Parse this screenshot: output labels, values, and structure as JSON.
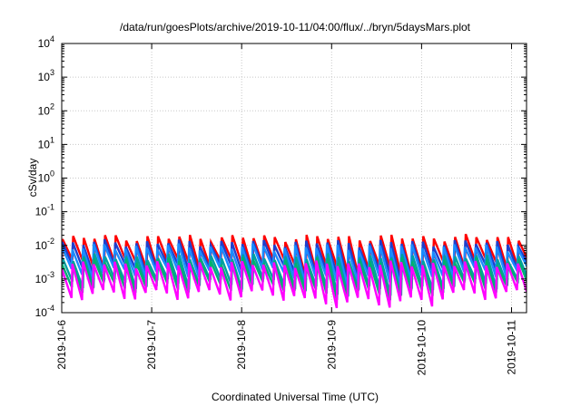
{
  "chart_data": {
    "type": "line",
    "title": "/data/run/goesPlots/archive/2019-10-11/04:00/flux/../bryn/5daysMars.plot",
    "xlabel": "Coordinated Universal Time (UTC)",
    "ylabel": "cSv/day",
    "y_scale": "log",
    "ylim": [
      0.0001,
      10000
    ],
    "xlim": [
      "2019-10-06T00:00",
      "2019-10-11T04:00"
    ],
    "grid": true,
    "x_ticks": [
      "2019-10-6",
      "2019-10-7",
      "2019-10-8",
      "2019-10-9",
      "2019-10-10",
      "2019-10-11"
    ],
    "y_ticks": [
      {
        "base": "10",
        "exp": "-4"
      },
      {
        "base": "10",
        "exp": "-3"
      },
      {
        "base": "10",
        "exp": "-2"
      },
      {
        "base": "10",
        "exp": "-1"
      },
      {
        "base": "10",
        "exp": "0"
      },
      {
        "base": "10",
        "exp": "1"
      },
      {
        "base": "10",
        "exp": "2"
      },
      {
        "base": "10",
        "exp": "3"
      },
      {
        "base": "10",
        "exp": "4"
      }
    ],
    "sawtooth": {
      "cycle_hours": 2.83,
      "note_units": "peak and trough values in cSv/day; each series rises sharply at cycle start and decays to the trough"
    },
    "series": [
      {
        "color": "#ff0000",
        "peak": 0.017,
        "trough": 0.0028
      },
      {
        "color": "#1f3fcc",
        "peak": 0.012,
        "trough": 0.0021
      },
      {
        "color": "#1a8cff",
        "peak": 0.009,
        "trough": 0.0016
      },
      {
        "color": "#00a0a0",
        "peak": 0.0045,
        "trough": 0.00075
      },
      {
        "color": "#00b070",
        "peak": 0.0035,
        "trough": 0.0006
      },
      {
        "color": "#ff00ff",
        "peak": 0.0028,
        "trough": 0.00035
      }
    ]
  }
}
